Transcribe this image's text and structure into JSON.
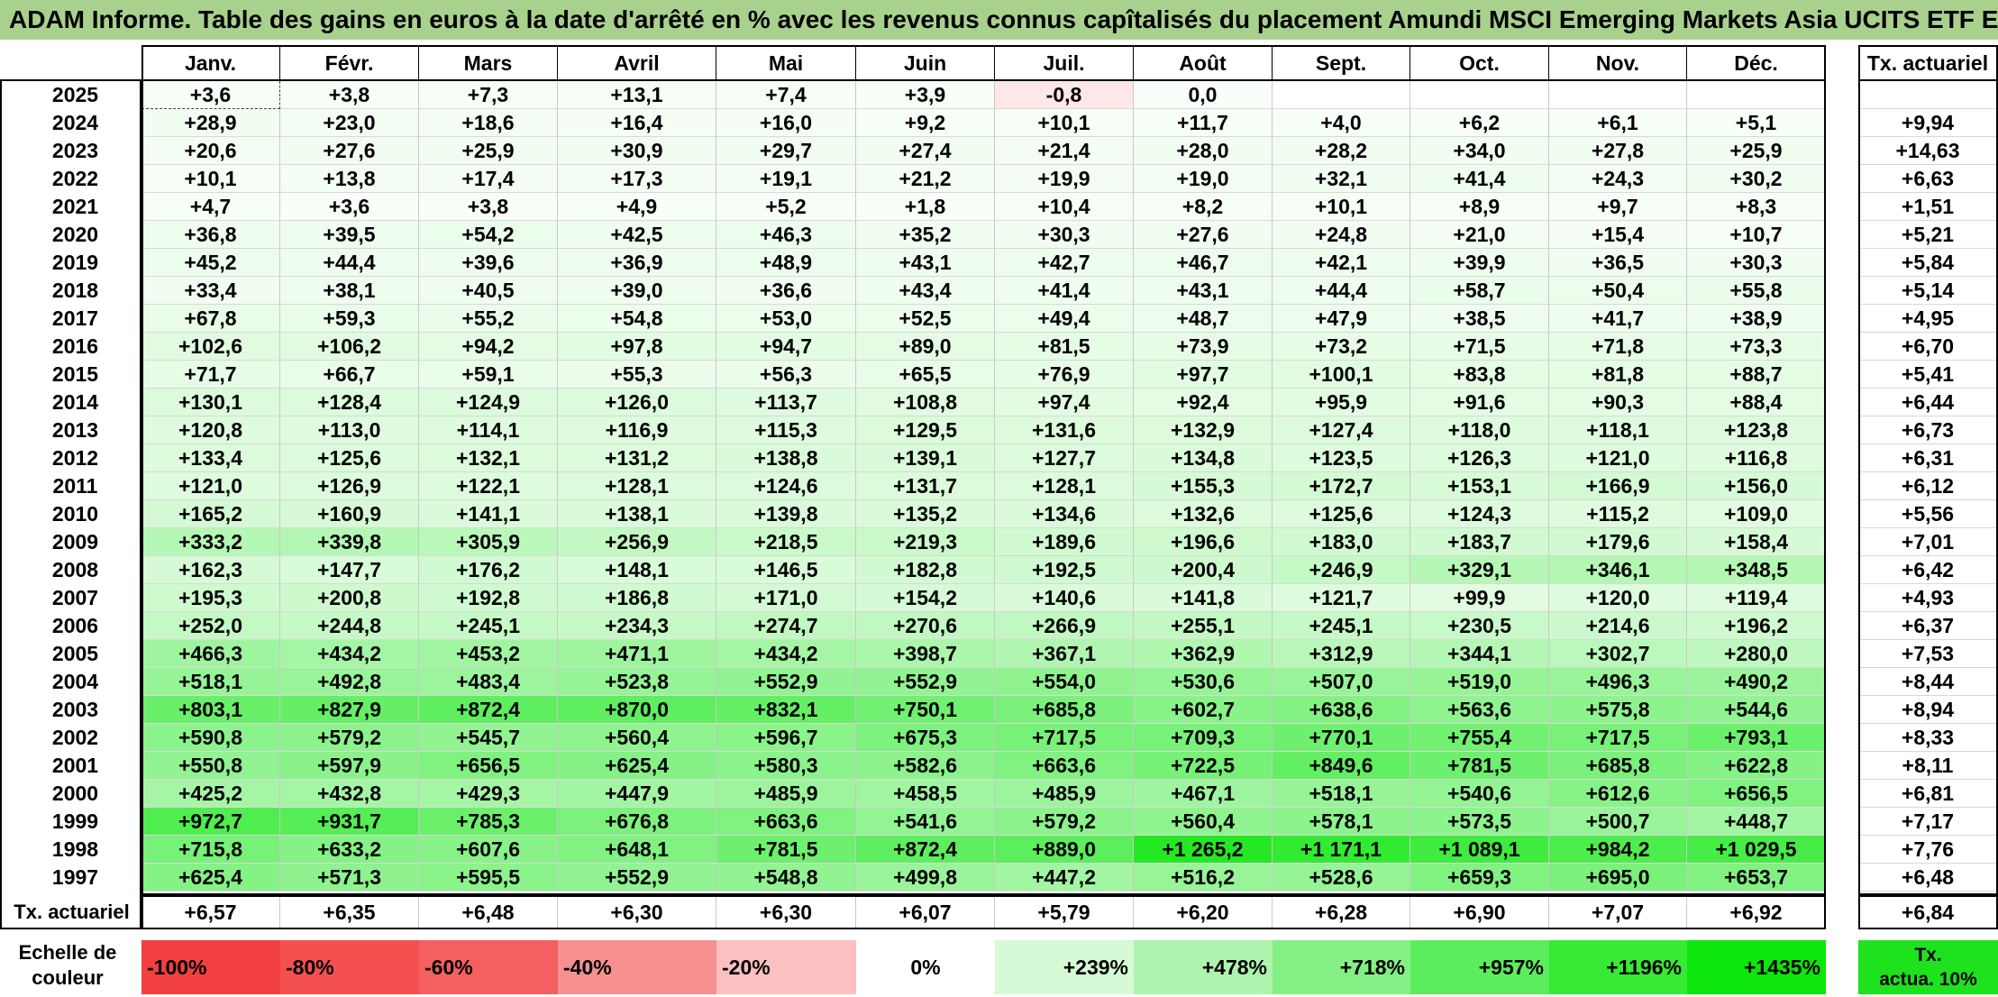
{
  "title": "ADAM Informe. Table des gains en euros à la date d'arrêté en % avec les revenus connus capîtalisés du placement Amundi MSCI Emerging Markets Asia UCITS ETF EUR Acc",
  "months": [
    "Janv.",
    "Févr.",
    "Mars",
    "Avril",
    "Mai",
    "Juin",
    "Juil.",
    "Août",
    "Sept.",
    "Oct.",
    "Nov.",
    "Déc."
  ],
  "rate_header": "Tx. actuariel",
  "rows": [
    {
      "year": "2025",
      "values": [
        "+3,6",
        "+3,8",
        "+7,3",
        "+13,1",
        "+7,4",
        "+3,9",
        "-0,8",
        "0,0",
        "",
        "",
        "",
        ""
      ],
      "rate": ""
    },
    {
      "year": "2024",
      "values": [
        "+28,9",
        "+23,0",
        "+18,6",
        "+16,4",
        "+16,0",
        "+9,2",
        "+10,1",
        "+11,7",
        "+4,0",
        "+6,2",
        "+6,1",
        "+5,1"
      ],
      "rate": "+9,94"
    },
    {
      "year": "2023",
      "values": [
        "+20,6",
        "+27,6",
        "+25,9",
        "+30,9",
        "+29,7",
        "+27,4",
        "+21,4",
        "+28,0",
        "+28,2",
        "+34,0",
        "+27,8",
        "+25,9"
      ],
      "rate": "+14,63"
    },
    {
      "year": "2022",
      "values": [
        "+10,1",
        "+13,8",
        "+17,4",
        "+17,3",
        "+19,1",
        "+21,2",
        "+19,9",
        "+19,0",
        "+32,1",
        "+41,4",
        "+24,3",
        "+30,2"
      ],
      "rate": "+6,63"
    },
    {
      "year": "2021",
      "values": [
        "+4,7",
        "+3,6",
        "+3,8",
        "+4,9",
        "+5,2",
        "+1,8",
        "+10,4",
        "+8,2",
        "+10,1",
        "+8,9",
        "+9,7",
        "+8,3"
      ],
      "rate": "+1,51"
    },
    {
      "year": "2020",
      "values": [
        "+36,8",
        "+39,5",
        "+54,2",
        "+42,5",
        "+46,3",
        "+35,2",
        "+30,3",
        "+27,6",
        "+24,8",
        "+21,0",
        "+15,4",
        "+10,7"
      ],
      "rate": "+5,21"
    },
    {
      "year": "2019",
      "values": [
        "+45,2",
        "+44,4",
        "+39,6",
        "+36,9",
        "+48,9",
        "+43,1",
        "+42,7",
        "+46,7",
        "+42,1",
        "+39,9",
        "+36,5",
        "+30,3"
      ],
      "rate": "+5,84"
    },
    {
      "year": "2018",
      "values": [
        "+33,4",
        "+38,1",
        "+40,5",
        "+39,0",
        "+36,6",
        "+43,4",
        "+41,4",
        "+43,1",
        "+44,4",
        "+58,7",
        "+50,4",
        "+55,8"
      ],
      "rate": "+5,14"
    },
    {
      "year": "2017",
      "values": [
        "+67,8",
        "+59,3",
        "+55,2",
        "+54,8",
        "+53,0",
        "+52,5",
        "+49,4",
        "+48,7",
        "+47,9",
        "+38,5",
        "+41,7",
        "+38,9"
      ],
      "rate": "+4,95"
    },
    {
      "year": "2016",
      "values": [
        "+102,6",
        "+106,2",
        "+94,2",
        "+97,8",
        "+94,7",
        "+89,0",
        "+81,5",
        "+73,9",
        "+73,2",
        "+71,5",
        "+71,8",
        "+73,3"
      ],
      "rate": "+6,70"
    },
    {
      "year": "2015",
      "values": [
        "+71,7",
        "+66,7",
        "+59,1",
        "+55,3",
        "+56,3",
        "+65,5",
        "+76,9",
        "+97,7",
        "+100,1",
        "+83,8",
        "+81,8",
        "+88,7"
      ],
      "rate": "+5,41"
    },
    {
      "year": "2014",
      "values": [
        "+130,1",
        "+128,4",
        "+124,9",
        "+126,0",
        "+113,7",
        "+108,8",
        "+97,4",
        "+92,4",
        "+95,9",
        "+91,6",
        "+90,3",
        "+88,4"
      ],
      "rate": "+6,44"
    },
    {
      "year": "2013",
      "values": [
        "+120,8",
        "+113,0",
        "+114,1",
        "+116,9",
        "+115,3",
        "+129,5",
        "+131,6",
        "+132,9",
        "+127,4",
        "+118,0",
        "+118,1",
        "+123,8"
      ],
      "rate": "+6,73"
    },
    {
      "year": "2012",
      "values": [
        "+133,4",
        "+125,6",
        "+132,1",
        "+131,2",
        "+138,8",
        "+139,1",
        "+127,7",
        "+134,8",
        "+123,5",
        "+126,3",
        "+121,0",
        "+116,8"
      ],
      "rate": "+6,31"
    },
    {
      "year": "2011",
      "values": [
        "+121,0",
        "+126,9",
        "+122,1",
        "+128,1",
        "+124,6",
        "+131,7",
        "+128,1",
        "+155,3",
        "+172,7",
        "+153,1",
        "+166,9",
        "+156,0"
      ],
      "rate": "+6,12"
    },
    {
      "year": "2010",
      "values": [
        "+165,2",
        "+160,9",
        "+141,1",
        "+138,1",
        "+139,8",
        "+135,2",
        "+134,6",
        "+132,6",
        "+125,6",
        "+124,3",
        "+115,2",
        "+109,0"
      ],
      "rate": "+5,56"
    },
    {
      "year": "2009",
      "values": [
        "+333,2",
        "+339,8",
        "+305,9",
        "+256,9",
        "+218,5",
        "+219,3",
        "+189,6",
        "+196,6",
        "+183,0",
        "+183,7",
        "+179,6",
        "+158,4"
      ],
      "rate": "+7,01"
    },
    {
      "year": "2008",
      "values": [
        "+162,3",
        "+147,7",
        "+176,2",
        "+148,1",
        "+146,5",
        "+182,8",
        "+192,5",
        "+200,4",
        "+246,9",
        "+329,1",
        "+346,1",
        "+348,5"
      ],
      "rate": "+6,42"
    },
    {
      "year": "2007",
      "values": [
        "+195,3",
        "+200,8",
        "+192,8",
        "+186,8",
        "+171,0",
        "+154,2",
        "+140,6",
        "+141,8",
        "+121,7",
        "+99,9",
        "+120,0",
        "+119,4"
      ],
      "rate": "+4,93"
    },
    {
      "year": "2006",
      "values": [
        "+252,0",
        "+244,8",
        "+245,1",
        "+234,3",
        "+274,7",
        "+270,6",
        "+266,9",
        "+255,1",
        "+245,1",
        "+230,5",
        "+214,6",
        "+196,2"
      ],
      "rate": "+6,37"
    },
    {
      "year": "2005",
      "values": [
        "+466,3",
        "+434,2",
        "+453,2",
        "+471,1",
        "+434,2",
        "+398,7",
        "+367,1",
        "+362,9",
        "+312,9",
        "+344,1",
        "+302,7",
        "+280,0"
      ],
      "rate": "+7,53"
    },
    {
      "year": "2004",
      "values": [
        "+518,1",
        "+492,8",
        "+483,4",
        "+523,8",
        "+552,9",
        "+552,9",
        "+554,0",
        "+530,6",
        "+507,0",
        "+519,0",
        "+496,3",
        "+490,2"
      ],
      "rate": "+8,44"
    },
    {
      "year": "2003",
      "values": [
        "+803,1",
        "+827,9",
        "+872,4",
        "+870,0",
        "+832,1",
        "+750,1",
        "+685,8",
        "+602,7",
        "+638,6",
        "+563,6",
        "+575,8",
        "+544,6"
      ],
      "rate": "+8,94"
    },
    {
      "year": "2002",
      "values": [
        "+590,8",
        "+579,2",
        "+545,7",
        "+560,4",
        "+596,7",
        "+675,3",
        "+717,5",
        "+709,3",
        "+770,1",
        "+755,4",
        "+717,5",
        "+793,1"
      ],
      "rate": "+8,33"
    },
    {
      "year": "2001",
      "values": [
        "+550,8",
        "+597,9",
        "+656,5",
        "+625,4",
        "+580,3",
        "+582,6",
        "+663,6",
        "+722,5",
        "+849,6",
        "+781,5",
        "+685,8",
        "+622,8"
      ],
      "rate": "+8,11"
    },
    {
      "year": "2000",
      "values": [
        "+425,2",
        "+432,8",
        "+429,3",
        "+447,9",
        "+485,9",
        "+458,5",
        "+485,9",
        "+467,1",
        "+518,1",
        "+540,6",
        "+612,6",
        "+656,5"
      ],
      "rate": "+6,81"
    },
    {
      "year": "1999",
      "values": [
        "+972,7",
        "+931,7",
        "+785,3",
        "+676,8",
        "+663,6",
        "+541,6",
        "+579,2",
        "+560,4",
        "+578,1",
        "+573,5",
        "+500,7",
        "+448,7"
      ],
      "rate": "+7,17"
    },
    {
      "year": "1998",
      "values": [
        "+715,8",
        "+633,2",
        "+607,6",
        "+648,1",
        "+781,5",
        "+872,4",
        "+889,0",
        "+1 265,2",
        "+1 171,1",
        "+1 089,1",
        "+984,2",
        "+1 029,5"
      ],
      "rate": "+7,76"
    },
    {
      "year": "1997",
      "values": [
        "+625,4",
        "+571,3",
        "+595,5",
        "+552,9",
        "+548,8",
        "+499,8",
        "+447,2",
        "+516,2",
        "+528,6",
        "+659,3",
        "+695,0",
        "+653,7"
      ],
      "rate": "+6,48"
    }
  ],
  "footer": {
    "label": "Tx. actuariel",
    "values": [
      "+6,57",
      "+6,35",
      "+6,48",
      "+6,30",
      "+6,30",
      "+6,07",
      "+5,79",
      "+6,20",
      "+6,28",
      "+6,90",
      "+7,07",
      "+6,92"
    ],
    "rate": "+6,84"
  },
  "scale": {
    "label_line1": "Echelle de",
    "label_line2": "couleur",
    "items": [
      {
        "text": "-100%",
        "value": -100,
        "color": "#f24040"
      },
      {
        "text": "-80%",
        "value": -80,
        "color": "#f45050"
      },
      {
        "text": "-60%",
        "value": -60,
        "color": "#f46060"
      },
      {
        "text": "-40%",
        "value": -40,
        "color": "#f79090"
      },
      {
        "text": "-20%",
        "value": -20,
        "color": "#fbc0c0"
      },
      {
        "text": "0%",
        "value": 0,
        "color": "#ffffff"
      },
      {
        "text": "+239%",
        "value": 239,
        "color": "#d6fad6"
      },
      {
        "text": "+478%",
        "value": 478,
        "color": "#aef3ae"
      },
      {
        "text": "+718%",
        "value": 718,
        "color": "#84ef84"
      },
      {
        "text": "+957%",
        "value": 957,
        "color": "#5ced5c"
      },
      {
        "text": "+1196%",
        "value": 1196,
        "color": "#36ea36"
      },
      {
        "text": "+1435%",
        "value": 1435,
        "color": "#0de60d"
      }
    ],
    "rate_legend_line1": "Tx.",
    "rate_legend_line2": "actua. 10%",
    "rate_legend_color": "#1ee21e"
  },
  "colors": {
    "title_bg": "#a9d18e",
    "positive_max": "#0de60d",
    "negative": "#fde7e7"
  }
}
